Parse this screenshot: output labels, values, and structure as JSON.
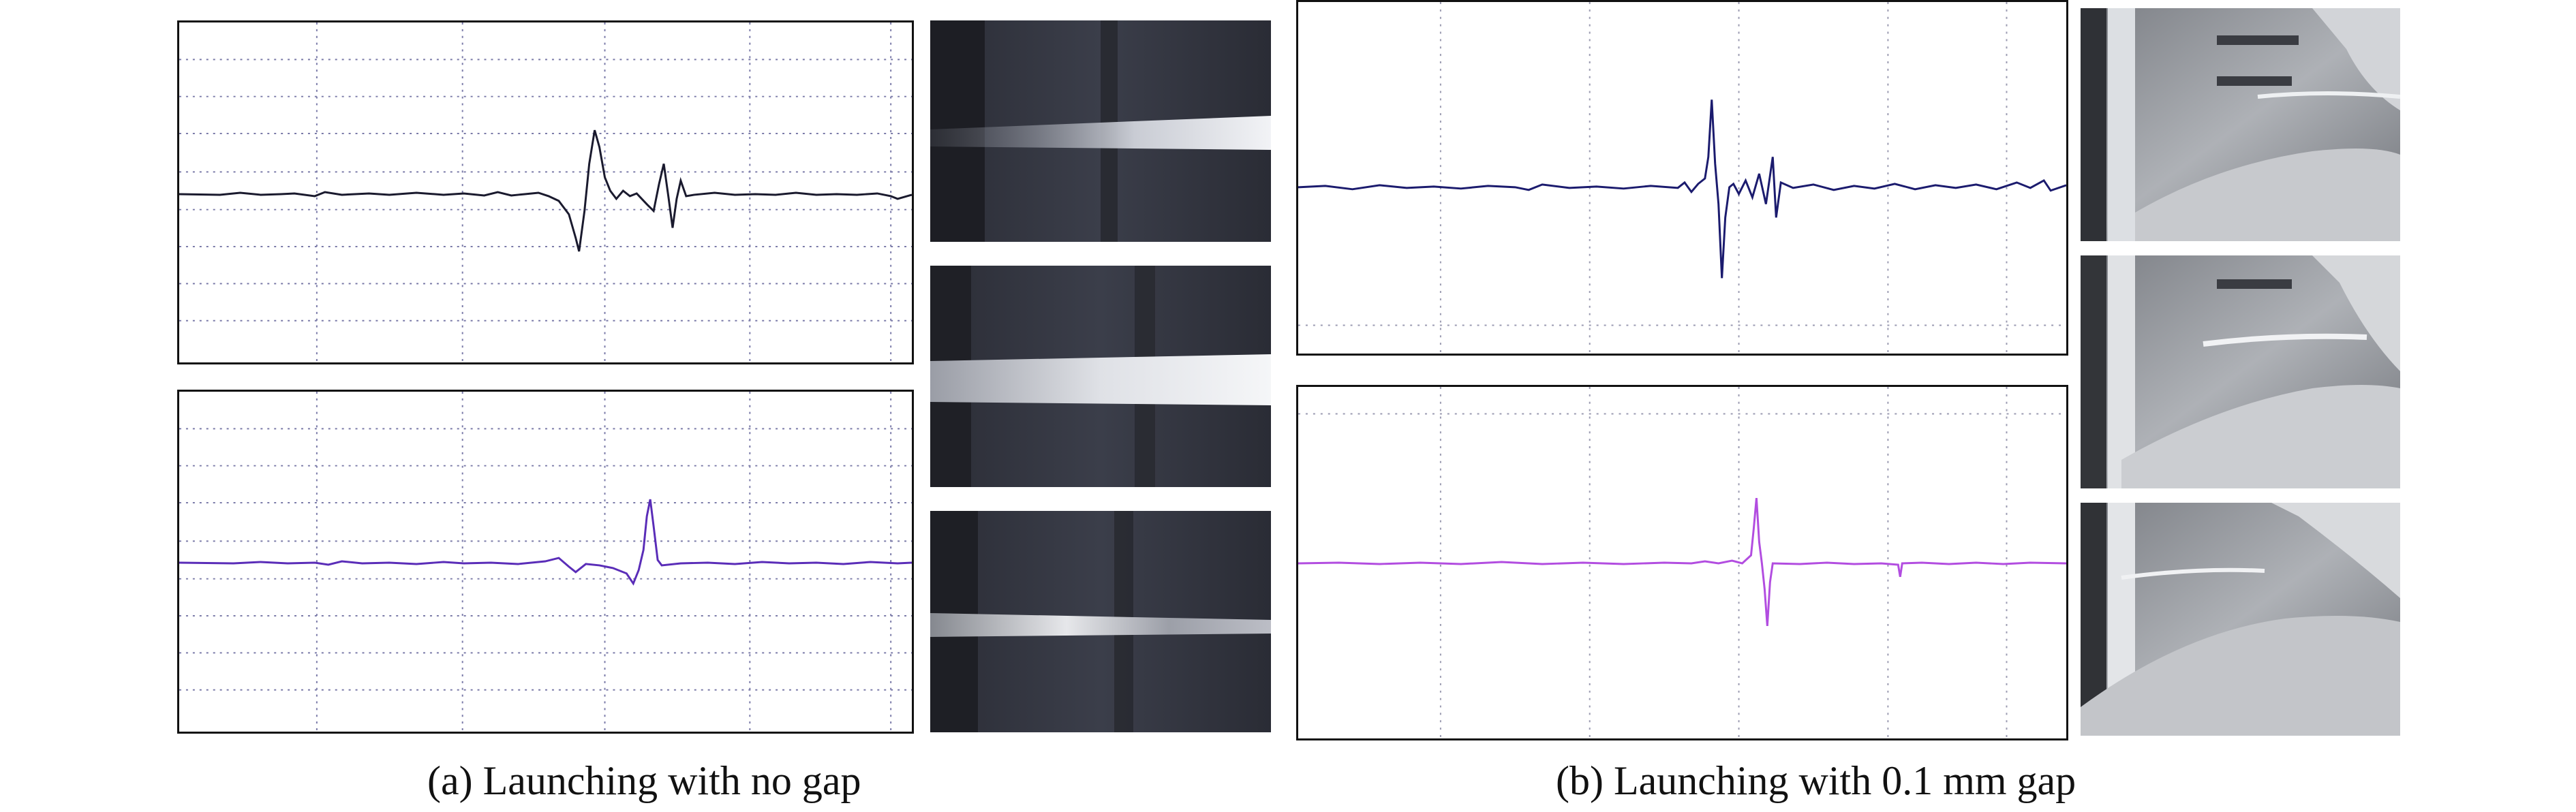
{
  "figure": {
    "panel_a": {
      "caption": "(a) Launching with no gap",
      "trace_colors": [
        "#1a1a2e",
        "#5a2db8"
      ]
    },
    "panel_b": {
      "caption": "(b) Launching with 0.1 mm gap",
      "trace_colors": [
        "#1b1b6e",
        "#b24de0"
      ]
    }
  }
}
